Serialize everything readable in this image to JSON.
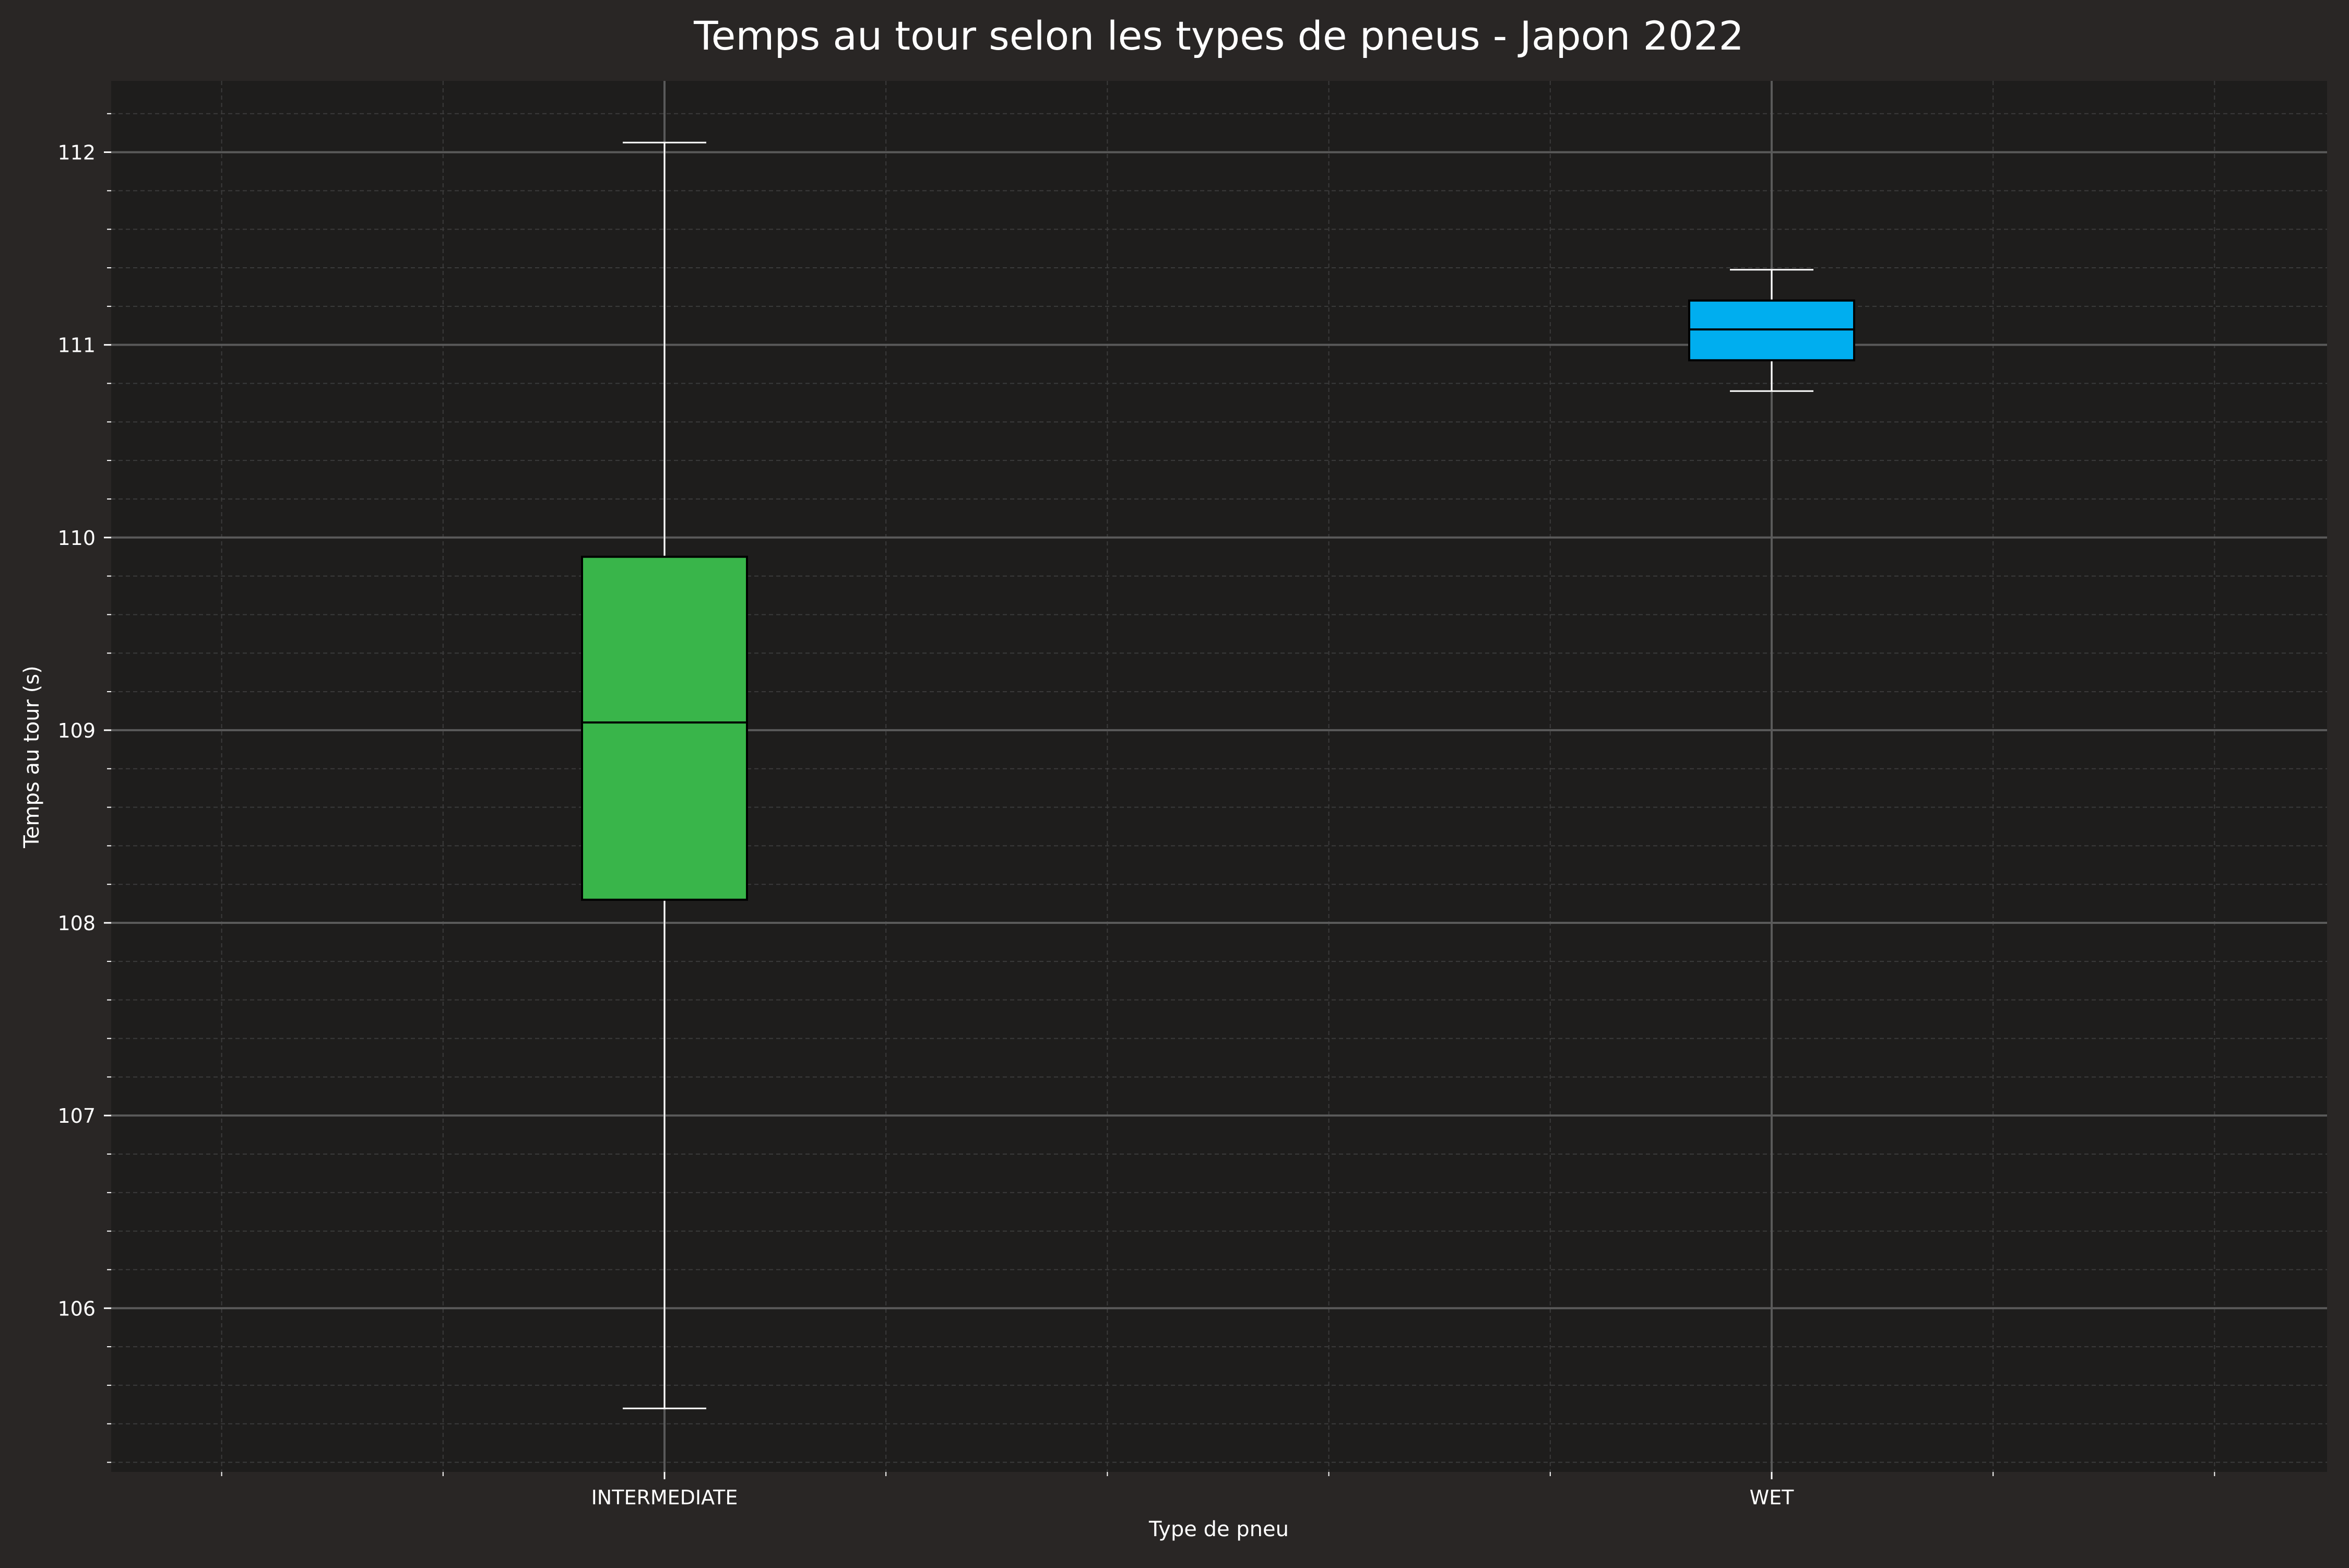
{
  "chart_data": {
    "type": "box",
    "title": "Temps au tour selon les types de pneus - Japon 2022",
    "xlabel": "Type de pneu",
    "ylabel": "Temps au tour (s)",
    "categories": [
      "INTERMEDIATE",
      "WET"
    ],
    "ylim": [
      105.15,
      112.37
    ],
    "yticks": [
      106,
      107,
      108,
      109,
      110,
      111,
      112
    ],
    "ytick_labels": [
      "106",
      "107",
      "108",
      "109",
      "110",
      "111",
      "112"
    ],
    "boxes": [
      {
        "category": "INTERMEDIATE",
        "whisker_low": 105.48,
        "q1": 108.12,
        "median": 109.04,
        "q3": 109.9,
        "whisker_high": 112.05,
        "color": "#39b54a"
      },
      {
        "category": "WET",
        "whisker_low": 110.76,
        "q1": 110.92,
        "median": 111.08,
        "q3": 111.23,
        "whisker_high": 111.39,
        "color": "#00aeef"
      }
    ],
    "grid": true,
    "legend": "none"
  },
  "colors": {
    "figure_background": "#292625",
    "plot_background": "#1e1d1c",
    "text": "#ffffff",
    "major_grid": "#5a5a5a",
    "minor_grid": "#3b3b3b",
    "whisker": "#ffffff",
    "box_edge": "#000000"
  }
}
